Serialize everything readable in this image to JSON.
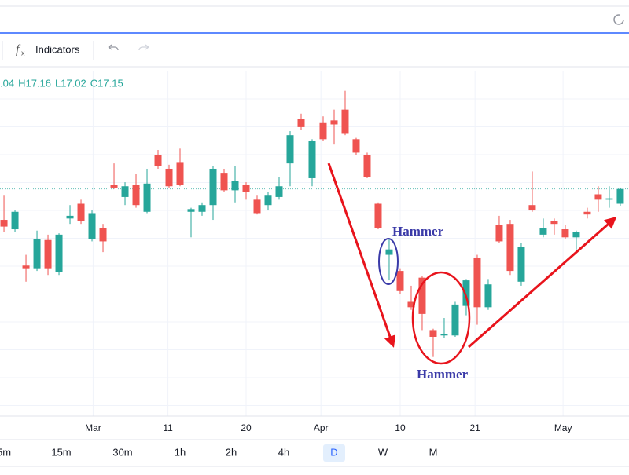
{
  "toolbar": {
    "indicators": "Indicators"
  },
  "legend": [
    ".04",
    "H17.16",
    "L17.02",
    "C17.15"
  ],
  "timeframes": [
    "5m",
    "15m",
    "30m",
    "1h",
    "2h",
    "4h",
    "D",
    "W",
    "M"
  ],
  "active_timeframe": 6,
  "chart_data": {
    "type": "candlestick",
    "up_color": "#26a69a",
    "down_color": "#ef5350",
    "open": [
      16.92,
      16.85,
      16.58,
      16.56,
      16.77,
      16.53,
      16.93,
      17.04,
      16.78,
      16.86,
      17.18,
      17.09,
      17.18,
      16.98,
      17.4,
      17.3,
      17.35,
      16.98,
      16.98,
      17.03,
      17.27,
      17.14,
      17.18,
      17.07,
      17.03,
      17.09,
      17.34,
      17.67,
      17.23,
      17.64,
      17.66,
      17.74,
      17.52,
      17.4,
      17.04,
      16.66,
      16.54,
      16.31,
      16.49,
      16.1,
      16.06,
      16.06,
      16.28,
      16.64,
      16.27,
      16.88,
      16.89,
      16.46,
      17.03,
      16.81,
      16.91,
      16.85,
      16.79,
      16.98,
      17.11,
      17.07,
      17.04
    ],
    "high": [
      17.1,
      16.99,
      16.66,
      16.84,
      16.81,
      16.82,
      17.03,
      17.07,
      16.99,
      16.89,
      17.34,
      17.2,
      17.26,
      17.3,
      17.44,
      17.33,
      17.45,
      17.01,
      17.05,
      17.32,
      17.3,
      17.32,
      17.2,
      17.1,
      17.13,
      17.24,
      17.58,
      17.71,
      17.52,
      17.69,
      17.74,
      17.88,
      17.53,
      17.42,
      17.05,
      16.78,
      16.56,
      16.43,
      16.5,
      16.11,
      16.19,
      16.31,
      16.48,
      16.66,
      16.48,
      16.95,
      16.92,
      16.75,
      17.28,
      16.93,
      16.93,
      16.88,
      16.84,
      17.01,
      17.17,
      17.17,
      17.16
    ],
    "low": [
      16.83,
      16.83,
      16.46,
      16.54,
      16.51,
      16.51,
      16.89,
      16.89,
      16.76,
      16.68,
      17.15,
      17.03,
      17.01,
      16.97,
      17.3,
      17.16,
      17.17,
      16.79,
      16.95,
      16.92,
      17.13,
      17.05,
      17.07,
      16.96,
      16.99,
      17.07,
      17.17,
      17.59,
      17.17,
      17.51,
      17.48,
      17.55,
      17.4,
      17.23,
      16.85,
      16.47,
      16.37,
      16.25,
      16.1,
      15.9,
      16.04,
      16.05,
      16.21,
      16.14,
      16.25,
      16.75,
      16.51,
      16.43,
      16.98,
      16.79,
      16.81,
      16.78,
      16.7,
      16.93,
      16.98,
      17.01,
      17.02
    ],
    "close": [
      16.87,
      16.98,
      16.56,
      16.78,
      16.56,
      16.81,
      16.95,
      16.91,
      16.97,
      16.76,
      17.16,
      17.17,
      17.03,
      17.19,
      17.32,
      17.17,
      17.18,
      17.0,
      17.03,
      17.3,
      17.14,
      17.21,
      17.13,
      16.97,
      17.1,
      17.17,
      17.55,
      17.61,
      17.51,
      17.52,
      17.63,
      17.56,
      17.42,
      17.24,
      16.86,
      16.7,
      16.39,
      16.27,
      16.22,
      16.05,
      16.07,
      16.29,
      16.47,
      16.27,
      16.44,
      16.76,
      16.54,
      16.72,
      16.99,
      16.86,
      16.89,
      16.79,
      16.83,
      16.96,
      17.07,
      17.08,
      17.15
    ],
    "xlim": [
      -0.36,
      56.79
    ],
    "ylim": [
      15.46,
      18.03
    ],
    "xticks": [
      {
        "value": 8.1,
        "label": "Mar"
      },
      {
        "value": 14.9,
        "label": "11"
      },
      {
        "value": 22,
        "label": "20"
      },
      {
        "value": 28.8,
        "label": "Apr"
      },
      {
        "value": 36,
        "label": "10"
      },
      {
        "value": 42.8,
        "label": "21"
      },
      {
        "value": 50.8,
        "label": "May"
      }
    ],
    "annotations": [
      "Hammer",
      "Hammer"
    ]
  }
}
